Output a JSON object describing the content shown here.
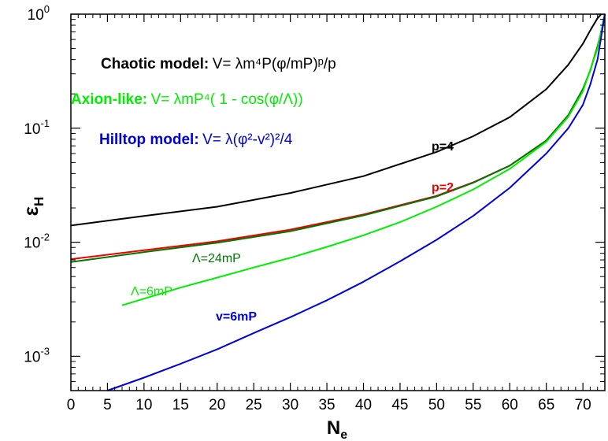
{
  "chart_data": {
    "type": "line",
    "xlabel": "N",
    "xlabel_sub": "e",
    "ylabel": "ε",
    "ylabel_sub": "H",
    "xlim": [
      0,
      73
    ],
    "ylim": [
      0.0005,
      1
    ],
    "yscale": "log",
    "x_ticks": [
      "0",
      "5",
      "10",
      "15",
      "20",
      "25",
      "30",
      "35",
      "40",
      "45",
      "50",
      "55",
      "60",
      "65",
      "70"
    ],
    "y_ticks": [
      {
        "base": "10",
        "exp": "0",
        "value": 1
      },
      {
        "base": "10",
        "exp": "-1",
        "value": 0.1
      },
      {
        "base": "10",
        "exp": "-2",
        "value": 0.01
      },
      {
        "base": "10",
        "exp": "-3",
        "value": 0.001
      }
    ],
    "legend": [
      {
        "name": "Chaotic model:",
        "formula": "V= λm⁴P(φ/mP)ᵖ/p",
        "color": "#000000"
      },
      {
        "name": "Axion-like:",
        "formula": "V= λmP⁴( 1 - cos(φ/Λ))",
        "color": "#00ee00"
      },
      {
        "name": "Hilltop model:",
        "formula": "V= λ(φ²-v²)²/4",
        "color": "#0000dd"
      }
    ],
    "series": [
      {
        "label": "p=4",
        "color": "#000000",
        "x": [
          0,
          10,
          20,
          30,
          40,
          50,
          55,
          60,
          65,
          68,
          70,
          71,
          72,
          72.5
        ],
        "y": [
          0.014,
          0.017,
          0.0205,
          0.027,
          0.038,
          0.062,
          0.085,
          0.125,
          0.22,
          0.36,
          0.55,
          0.72,
          0.92,
          1.0
        ]
      },
      {
        "label": "p=2",
        "color": "#ee0000",
        "x": [
          0,
          10,
          20,
          30,
          40,
          50,
          55,
          60,
          65,
          68,
          70,
          71,
          72,
          72.5,
          73
        ],
        "y": [
          0.0071,
          0.0085,
          0.0102,
          0.0129,
          0.0175,
          0.0255,
          0.0335,
          0.047,
          0.078,
          0.13,
          0.22,
          0.32,
          0.52,
          0.7,
          1.0
        ]
      },
      {
        "label": "Λ=24mP",
        "color": "#007700",
        "x": [
          0,
          10,
          20,
          30,
          40,
          50,
          55,
          60,
          65,
          68,
          70,
          71,
          72,
          72.5,
          73
        ],
        "y": [
          0.0067,
          0.0082,
          0.0099,
          0.0125,
          0.0172,
          0.0252,
          0.0332,
          0.047,
          0.078,
          0.13,
          0.22,
          0.32,
          0.52,
          0.7,
          1.0
        ]
      },
      {
        "label": "Λ=6mP",
        "color": "#00ee00",
        "x": [
          7,
          10,
          15,
          20,
          25,
          30,
          35,
          40,
          45,
          50,
          55,
          60,
          65,
          68,
          70,
          72,
          73
        ],
        "y": [
          0.0028,
          0.0032,
          0.004,
          0.0049,
          0.006,
          0.0073,
          0.0091,
          0.0115,
          0.015,
          0.0205,
          0.029,
          0.044,
          0.076,
          0.126,
          0.21,
          0.5,
          1.0
        ]
      },
      {
        "label": "v=6mP",
        "color": "#0000dd",
        "x": [
          5,
          10,
          15,
          20,
          25,
          30,
          35,
          40,
          45,
          50,
          55,
          60,
          65,
          68,
          70,
          71,
          72,
          73
        ],
        "y": [
          0.0005,
          0.00065,
          0.00086,
          0.00115,
          0.0016,
          0.0022,
          0.0031,
          0.0045,
          0.0068,
          0.0105,
          0.017,
          0.03,
          0.06,
          0.1,
          0.16,
          0.24,
          0.4,
          1.0
        ]
      }
    ],
    "grid": false,
    "legend_position": "top-left"
  }
}
